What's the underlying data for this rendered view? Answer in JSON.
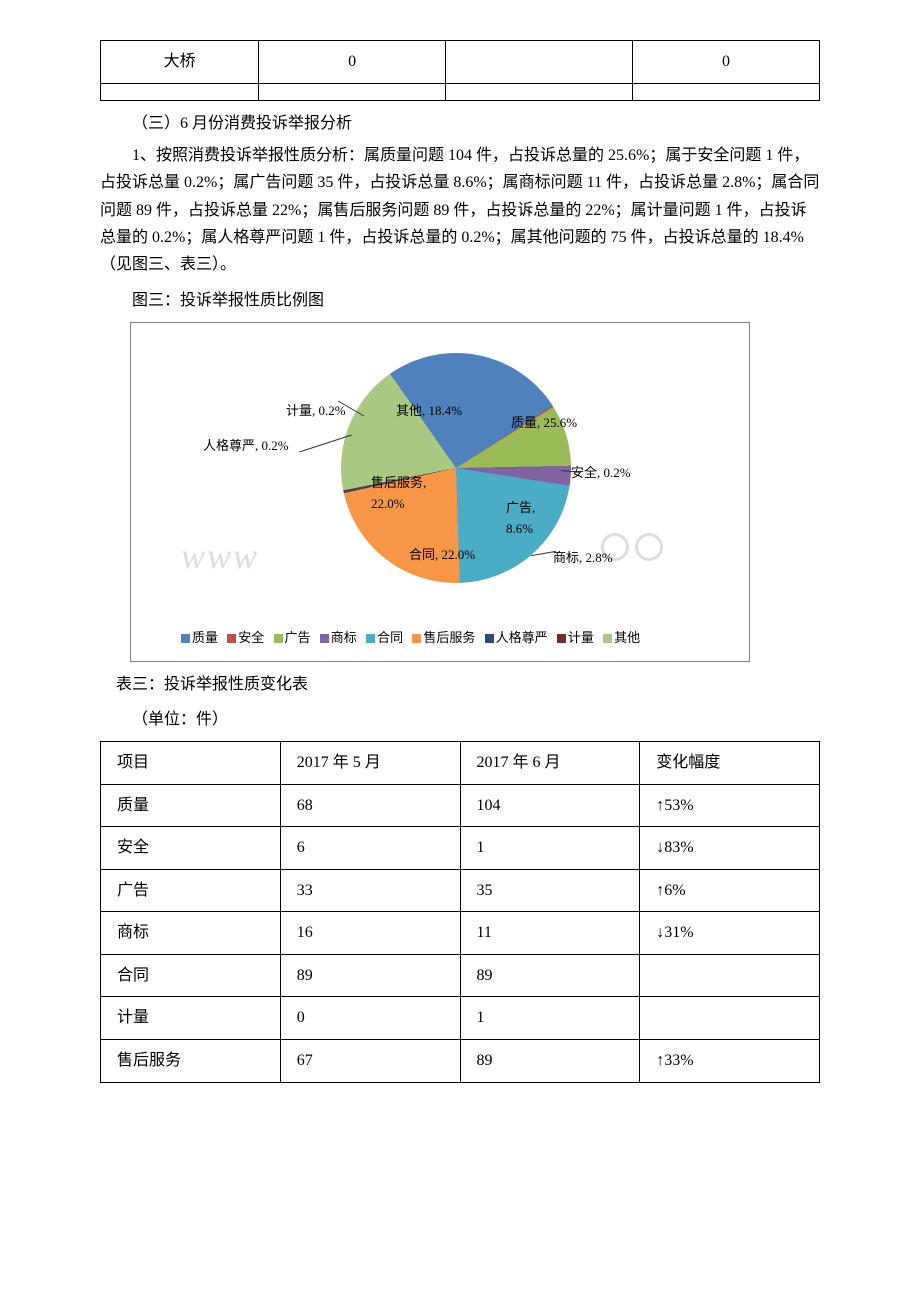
{
  "top_table": {
    "rows": [
      [
        "大桥",
        "0",
        "",
        "0"
      ],
      [
        "",
        "",
        "",
        ""
      ]
    ]
  },
  "heading3": "（三）6 月份消费投诉举报分析",
  "para1": "1、按照消费投诉举报性质分析：属质量问题 104 件，占投诉总量的 25.6%；属于安全问题 1 件，占投诉总量 0.2%；属广告问题 35 件，占投诉总量 8.6%；属商标问题 11 件，占投诉总量 2.8%；属合同问题 89 件，占投诉总量 22%；属售后服务问题 89 件，占投诉总量的 22%；属计量问题 1 件，占投诉总量的 0.2%；属人格尊严问题 1 件，占投诉总量的 0.2%；属其他问题的 75 件，占投诉总量的 18.4%（见图三、表三）。",
  "fig3_caption": "图三：投诉举报性质比例图",
  "pie_chart": {
    "type": "pie",
    "background_color": "#ffffff",
    "border_color": "#888888",
    "slices": [
      {
        "label": "质量",
        "value": 25.6,
        "display": "质量, 25.6%",
        "color": "#4f81bd"
      },
      {
        "label": "安全",
        "value": 0.2,
        "display": "安全, 0.2%",
        "color": "#c0504d"
      },
      {
        "label": "广告",
        "value": 8.6,
        "display": "广告, 8.6%",
        "color": "#9bbb59"
      },
      {
        "label": "商标",
        "value": 2.8,
        "display": "商标, 2.8%",
        "color": "#8064a2"
      },
      {
        "label": "合同",
        "value": 22.0,
        "display": "合同, 22.0%",
        "color": "#4bacc6"
      },
      {
        "label": "售后服务",
        "value": 22.0,
        "display": "售后服务, 22.0%",
        "color": "#f79646"
      },
      {
        "label": "人格尊严",
        "value": 0.2,
        "display": "人格尊严, 0.2%",
        "color": "#2c4d75"
      },
      {
        "label": "计量",
        "value": 0.2,
        "display": "计量, 0.2%",
        "color": "#772c2a"
      },
      {
        "label": "其他",
        "value": 18.4,
        "display": "其他, 18.4%",
        "color": "#a9c882"
      }
    ],
    "legend_items": [
      "质量",
      "安全",
      "广告",
      "商标",
      "合同",
      "售后服务",
      "人格尊严",
      "计量",
      "其他"
    ],
    "legend_colors": [
      "#4f81bd",
      "#c0504d",
      "#9bbb59",
      "#8064a2",
      "#4bacc6",
      "#f79646",
      "#2c4d75",
      "#772c2a",
      "#a9c882"
    ]
  },
  "watermark_text": "www  ",
  "table3_caption": "表三：投诉举报性质变化表",
  "table3_unit": "（单位：件）",
  "table3": {
    "columns": [
      "项目",
      "2017 年 5 月",
      "2017 年 6 月",
      "变化幅度"
    ],
    "rows": [
      [
        "质量",
        "68",
        "104",
        "↑53%"
      ],
      [
        "安全",
        "6",
        "1",
        "↓83%"
      ],
      [
        "广告",
        "33",
        "35",
        "↑6%"
      ],
      [
        "商标",
        "16",
        "11",
        "↓31%"
      ],
      [
        "合同",
        "89",
        "89",
        ""
      ],
      [
        "计量",
        "0",
        "1",
        ""
      ],
      [
        "售后服务",
        "67",
        "89",
        "↑33%"
      ]
    ]
  }
}
